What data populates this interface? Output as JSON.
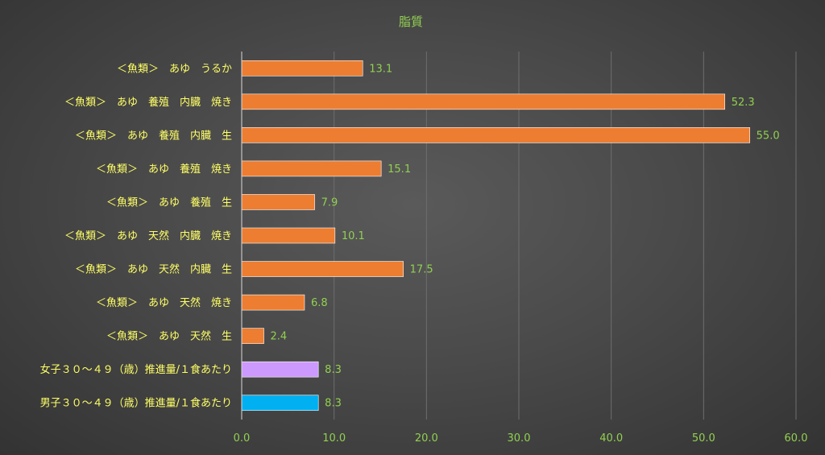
{
  "chart_data": {
    "type": "bar",
    "orientation": "horizontal",
    "title": "脂質",
    "categories": [
      "＜魚類＞　あゆ　うるか",
      "＜魚類＞　あゆ　養殖　内臓　焼き",
      "＜魚類＞　あゆ　養殖　内臓　生",
      "＜魚類＞　あゆ　養殖　焼き",
      "＜魚類＞　あゆ　養殖　生",
      "＜魚類＞　あゆ　天然　内臓　焼き",
      "＜魚類＞　あゆ　天然　内臓　生",
      "＜魚類＞　あゆ　天然　焼き",
      "＜魚類＞　あゆ　天然　生",
      "女子３０～４９（歳）推進量/１食あたり",
      "男子３０～４９（歳）推進量/１食あたり"
    ],
    "values": [
      13.1,
      52.3,
      55.0,
      15.1,
      7.9,
      10.1,
      17.5,
      6.8,
      2.4,
      8.3,
      8.3
    ],
    "value_labels": [
      "13.1",
      "52.3",
      "55.0",
      "15.1",
      "7.9",
      "10.1",
      "17.5",
      "6.8",
      "2.4",
      "8.3",
      "8.3"
    ],
    "bar_colors": [
      "#ed7d31",
      "#ed7d31",
      "#ed7d31",
      "#ed7d31",
      "#ed7d31",
      "#ed7d31",
      "#ed7d31",
      "#ed7d31",
      "#ed7d31",
      "#cc99ff",
      "#00b0f0"
    ],
    "xlim": [
      0,
      60
    ],
    "xticks": [
      "0.0",
      "10.0",
      "20.0",
      "30.0",
      "40.0",
      "50.0",
      "60.0"
    ],
    "grid": true,
    "legend": "none"
  }
}
